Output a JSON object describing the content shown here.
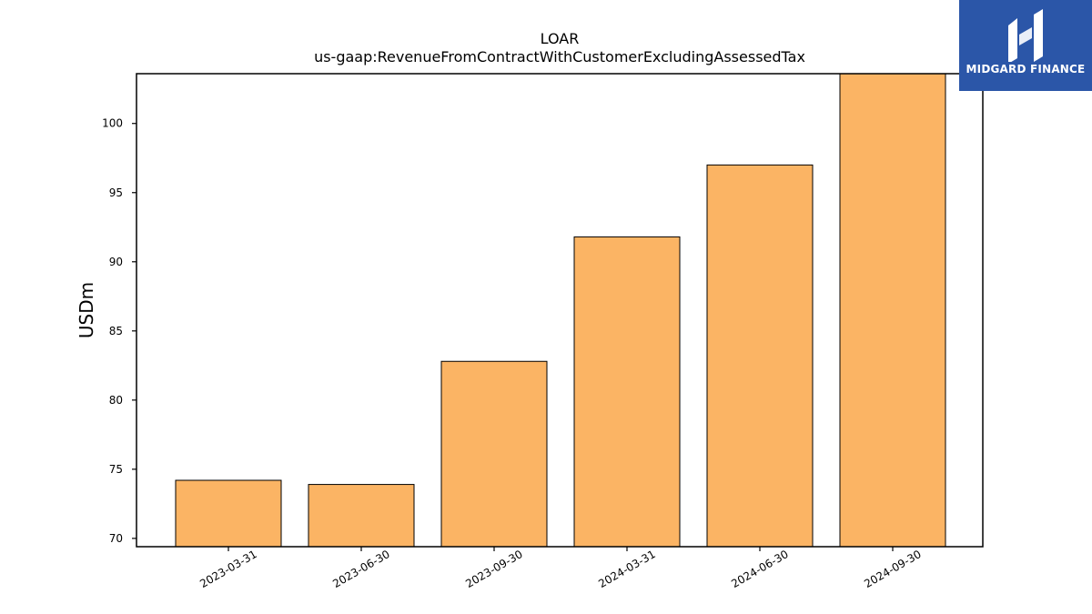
{
  "chart_data": {
    "type": "bar",
    "title": "LOAR",
    "subtitle": "us-gaap:RevenueFromContractWithCustomerExcludingAssessedTax",
    "xlabel": "",
    "ylabel": "USDm",
    "categories": [
      "2023-03-31",
      "2023-06-30",
      "2023-09-30",
      "2024-03-31",
      "2024-06-30",
      "2024-09-30"
    ],
    "values": [
      74.2,
      73.9,
      82.8,
      91.8,
      97.0,
      103.7
    ],
    "ylim": [
      69.4,
      103.6
    ],
    "yticks": [
      70,
      75,
      80,
      85,
      90,
      95,
      100
    ],
    "grid": false,
    "bar_color": "#fbb464",
    "bar_edge_color": "#000000"
  },
  "logo": {
    "text": "MIDGARD FINANCE",
    "color": "#2b56a8"
  }
}
